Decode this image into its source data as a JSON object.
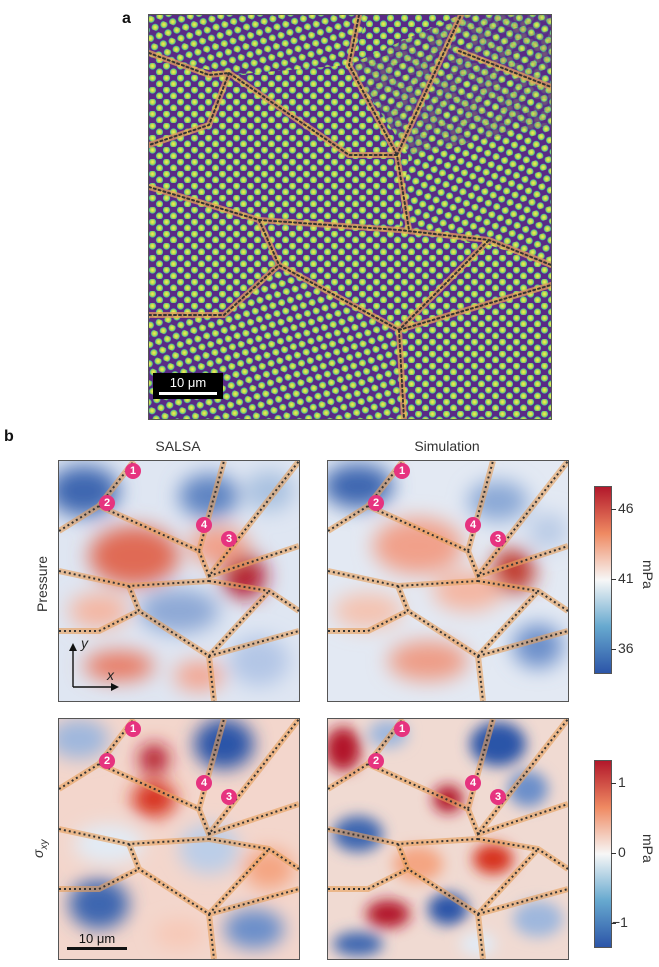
{
  "panel_a": {
    "letter": "a",
    "scale_bar": "10 μm"
  },
  "panel_b": {
    "letter": "b",
    "columns": [
      "SALSA",
      "Simulation"
    ],
    "rows": [
      "Pressure",
      "σxy"
    ],
    "axes": {
      "x": "x",
      "y": "y"
    },
    "scale_bar": "10 μm",
    "markers": [
      "1",
      "2",
      "3",
      "4"
    ],
    "colorbar_pressure": {
      "ticks": [
        "46",
        "41",
        "36"
      ],
      "unit": "mPa"
    },
    "colorbar_stress": {
      "ticks": [
        "1",
        "0",
        "−1"
      ],
      "unit": "mPa"
    }
  },
  "colors": {
    "crystal_bg": "#5a2a86",
    "particle": "#d8e24a",
    "grain_boundary": "#e8a05a",
    "map_red": "#b2182b",
    "map_white": "#f7f7f7",
    "map_blue": "#2c55a8"
  }
}
